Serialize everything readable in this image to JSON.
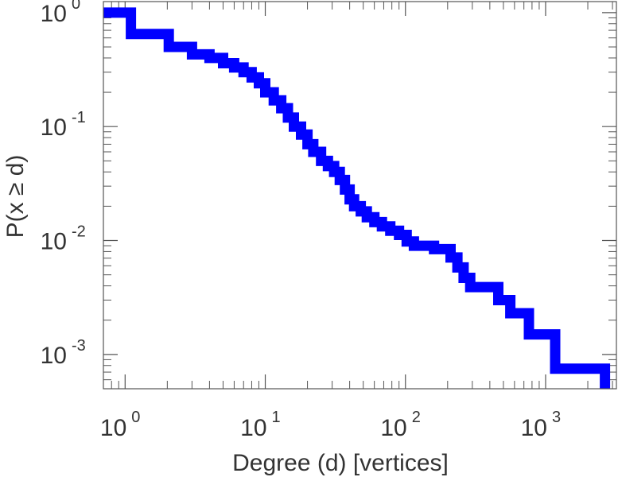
{
  "chart_data": {
    "type": "line",
    "style": "step",
    "title": "",
    "xlabel": "Degree (d) [vertices]",
    "ylabel": "P(x ≥ d)",
    "xscale": "log",
    "yscale": "log",
    "xlim": [
      0.7,
      3200
    ],
    "ylim": [
      0.0005,
      1.25
    ],
    "grid": false,
    "legend": "none",
    "x_ticks": [
      {
        "base": "10",
        "exp": "0",
        "value": 1
      },
      {
        "base": "10",
        "exp": "1",
        "value": 10
      },
      {
        "base": "10",
        "exp": "2",
        "value": 100
      },
      {
        "base": "10",
        "exp": "3",
        "value": 1000
      }
    ],
    "y_ticks": [
      {
        "base": "10",
        "exp": "0",
        "value": 1
      },
      {
        "base": "10",
        "exp": "-1",
        "value": 0.1
      },
      {
        "base": "10",
        "exp": "-2",
        "value": 0.01
      },
      {
        "base": "10",
        "exp": "-3",
        "value": 0.001
      }
    ],
    "series": [
      {
        "color": "#0000ff",
        "points": [
          [
            0.7,
            1.0
          ],
          [
            1.1,
            1.0
          ],
          [
            1.1,
            0.65
          ],
          [
            2.05,
            0.65
          ],
          [
            2.05,
            0.5
          ],
          [
            3.0,
            0.5
          ],
          [
            3.0,
            0.43
          ],
          [
            4.0,
            0.43
          ],
          [
            4.0,
            0.4
          ],
          [
            5.0,
            0.4
          ],
          [
            5.0,
            0.36
          ],
          [
            6.0,
            0.36
          ],
          [
            6.0,
            0.33
          ],
          [
            7.0,
            0.33
          ],
          [
            7.0,
            0.3
          ],
          [
            8.0,
            0.3
          ],
          [
            8.0,
            0.27
          ],
          [
            9.0,
            0.27
          ],
          [
            9.0,
            0.24
          ],
          [
            10.0,
            0.24
          ],
          [
            10.0,
            0.2
          ],
          [
            11.5,
            0.2
          ],
          [
            11.5,
            0.17
          ],
          [
            13.0,
            0.17
          ],
          [
            13.0,
            0.145
          ],
          [
            14.5,
            0.145
          ],
          [
            14.5,
            0.12
          ],
          [
            16.0,
            0.12
          ],
          [
            16.0,
            0.1
          ],
          [
            18.0,
            0.1
          ],
          [
            18.0,
            0.085
          ],
          [
            20.0,
            0.085
          ],
          [
            20.0,
            0.07
          ],
          [
            22.0,
            0.07
          ],
          [
            22.0,
            0.06
          ],
          [
            25.0,
            0.06
          ],
          [
            25.0,
            0.05
          ],
          [
            28.0,
            0.05
          ],
          [
            28.0,
            0.045
          ],
          [
            31.0,
            0.045
          ],
          [
            31.0,
            0.04
          ],
          [
            34.0,
            0.04
          ],
          [
            34.0,
            0.034
          ],
          [
            37.0,
            0.034
          ],
          [
            37.0,
            0.028
          ],
          [
            40.0,
            0.028
          ],
          [
            40.0,
            0.023
          ],
          [
            43.0,
            0.023
          ],
          [
            43.0,
            0.02
          ],
          [
            48.0,
            0.02
          ],
          [
            48.0,
            0.018
          ],
          [
            53.0,
            0.018
          ],
          [
            53.0,
            0.016
          ],
          [
            60.0,
            0.016
          ],
          [
            60.0,
            0.0145
          ],
          [
            68.0,
            0.0145
          ],
          [
            68.0,
            0.0133
          ],
          [
            78.0,
            0.0133
          ],
          [
            78.0,
            0.0122
          ],
          [
            90.0,
            0.0122
          ],
          [
            90.0,
            0.0112
          ],
          [
            102.0,
            0.0112
          ],
          [
            102.0,
            0.0098
          ],
          [
            115.0,
            0.0098
          ],
          [
            115.0,
            0.009
          ],
          [
            160.0,
            0.009
          ],
          [
            160.0,
            0.0084
          ],
          [
            210.0,
            0.0084
          ],
          [
            210.0,
            0.0071
          ],
          [
            235.0,
            0.0071
          ],
          [
            235.0,
            0.0058
          ],
          [
            260.0,
            0.0058
          ],
          [
            260.0,
            0.0047
          ],
          [
            290.0,
            0.0047
          ],
          [
            290.0,
            0.0039
          ],
          [
            460.0,
            0.0039
          ],
          [
            460.0,
            0.003
          ],
          [
            560.0,
            0.003
          ],
          [
            560.0,
            0.0023
          ],
          [
            760.0,
            0.0023
          ],
          [
            760.0,
            0.0015
          ],
          [
            1170.0,
            0.0015
          ],
          [
            1170.0,
            0.00075
          ],
          [
            2650.0,
            0.00075
          ],
          [
            2650.0,
            0.0005
          ]
        ]
      }
    ]
  }
}
